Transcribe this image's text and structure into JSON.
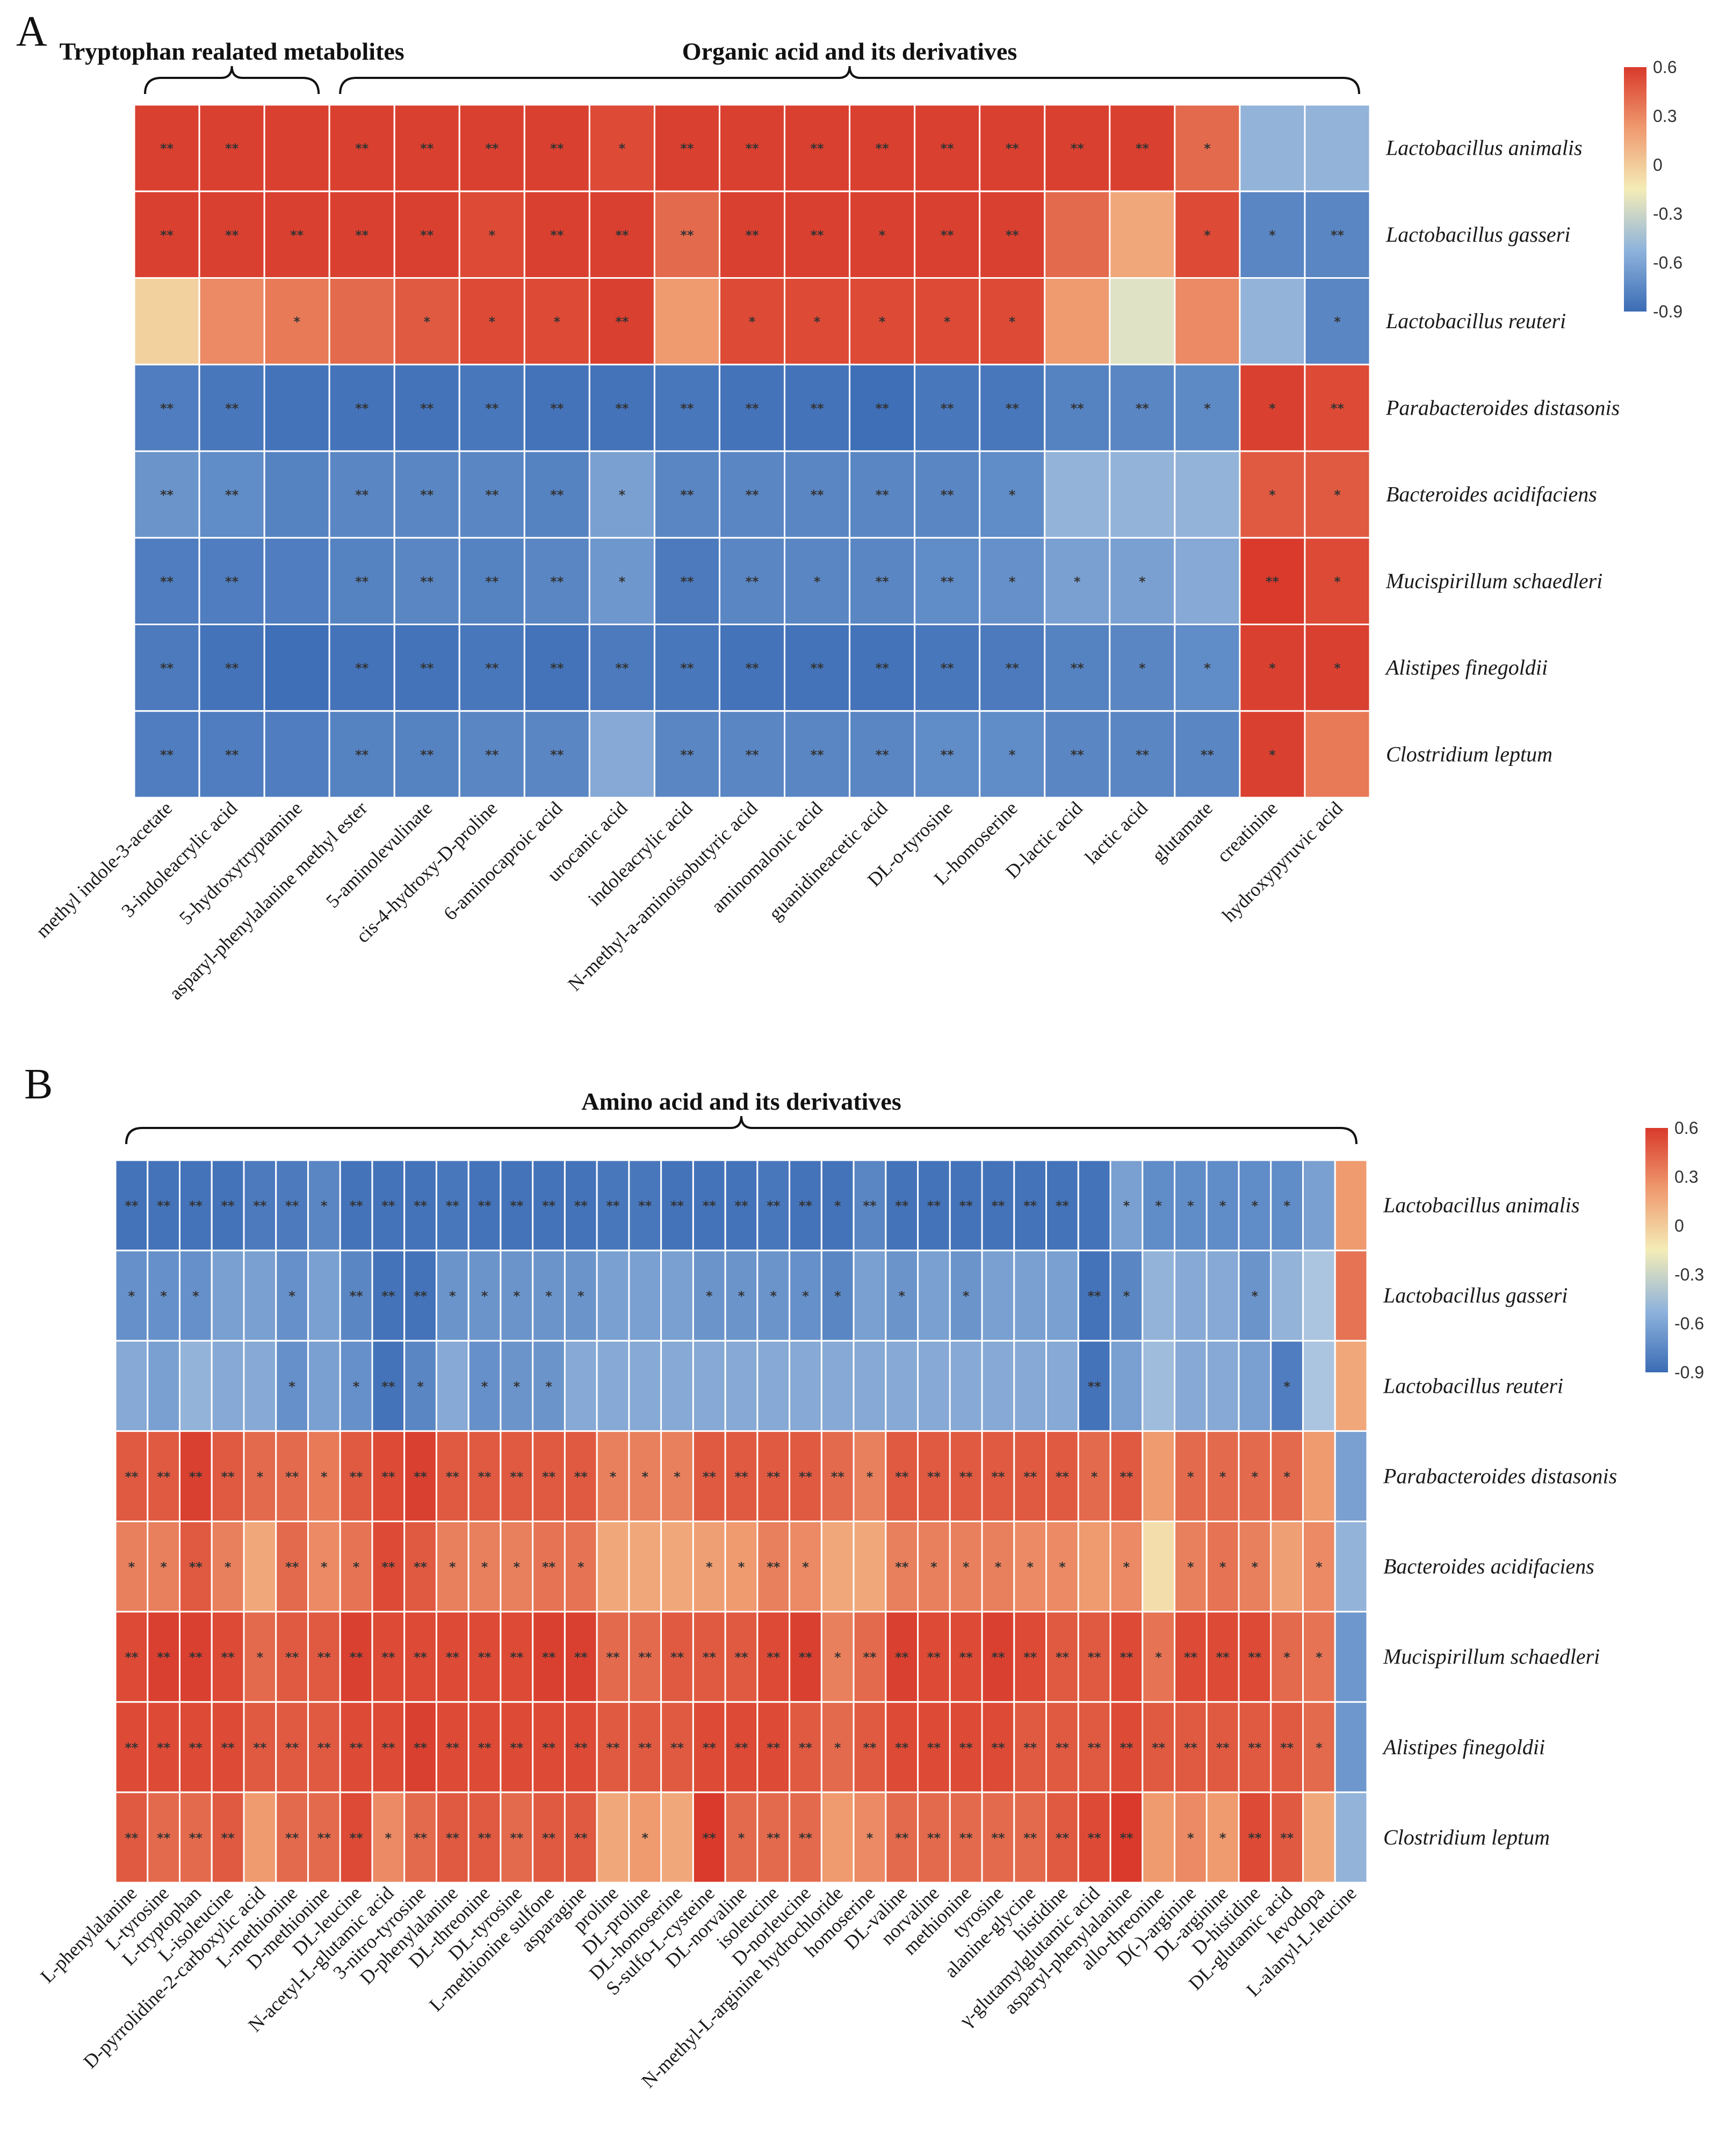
{
  "chart_data": [
    {
      "panel": "A",
      "type": "heatmap",
      "groups": [
        {
          "label": "Tryptophan realated metabolites",
          "start": 0,
          "end": 2
        },
        {
          "label": "Organic  acid and its derivatives",
          "start": 3,
          "end": 18
        }
      ],
      "rows": [
        "Lactobacillus animalis",
        "Lactobacillus gasseri",
        "Lactobacillus reuteri",
        "Parabacteroides distasonis",
        "Bacteroides acidifaciens",
        "Mucispirillum schaedleri",
        "Alistipes finegoldii",
        "Clostridium leptum"
      ],
      "columns": [
        "methyl indole-3-acetate",
        "3-indoleacrylic acid",
        "5-hydroxytryptamine",
        "asparyl-phenylalanine methyl ester",
        "5-aminolevulinate",
        "cis-4-hydroxy-D-proline",
        "6-aminocaproic acid",
        "urocanic acid",
        "indoleacrylic acid",
        "N-methyl-a-aminoisobutyric acid",
        "aminomalonic acid",
        "guanidineacetic acid",
        "DL-o-tyrosine",
        "L-homoserine",
        "D-lactic acid",
        "lactic acid",
        "glutamate",
        "creatinine",
        "hydroxypyruvic acid"
      ],
      "values": [
        [
          0.58,
          0.58,
          0.58,
          0.58,
          0.58,
          0.58,
          0.58,
          0.55,
          0.58,
          0.58,
          0.58,
          0.58,
          0.58,
          0.58,
          0.58,
          0.58,
          0.45,
          -0.45,
          -0.45
        ],
        [
          0.58,
          0.58,
          0.58,
          0.58,
          0.58,
          0.55,
          0.58,
          0.58,
          0.45,
          0.58,
          0.58,
          0.58,
          0.58,
          0.58,
          0.45,
          0.25,
          0.55,
          -0.72,
          -0.72
        ],
        [
          0.1,
          0.35,
          0.4,
          0.45,
          0.5,
          0.55,
          0.55,
          0.58,
          0.3,
          0.55,
          0.55,
          0.55,
          0.55,
          0.55,
          0.3,
          -0.1,
          0.35,
          -0.45,
          -0.72
        ],
        [
          -0.78,
          -0.82,
          -0.85,
          -0.85,
          -0.85,
          -0.82,
          -0.85,
          -0.85,
          -0.82,
          -0.85,
          -0.85,
          -0.88,
          -0.82,
          -0.82,
          -0.75,
          -0.72,
          -0.7,
          0.58,
          0.55
        ],
        [
          -0.62,
          -0.68,
          -0.75,
          -0.72,
          -0.72,
          -0.72,
          -0.75,
          -0.55,
          -0.72,
          -0.72,
          -0.72,
          -0.72,
          -0.72,
          -0.68,
          -0.45,
          -0.45,
          -0.45,
          0.5,
          0.5
        ],
        [
          -0.78,
          -0.78,
          -0.78,
          -0.75,
          -0.72,
          -0.75,
          -0.72,
          -0.6,
          -0.8,
          -0.72,
          -0.72,
          -0.72,
          -0.68,
          -0.65,
          -0.55,
          -0.55,
          -0.5,
          0.6,
          0.55
        ],
        [
          -0.8,
          -0.85,
          -0.88,
          -0.85,
          -0.85,
          -0.82,
          -0.85,
          -0.8,
          -0.82,
          -0.85,
          -0.85,
          -0.85,
          -0.82,
          -0.8,
          -0.75,
          -0.72,
          -0.68,
          0.58,
          0.58
        ],
        [
          -0.78,
          -0.78,
          -0.78,
          -0.75,
          -0.75,
          -0.72,
          -0.72,
          -0.5,
          -0.72,
          -0.72,
          -0.72,
          -0.72,
          -0.68,
          -0.68,
          -0.72,
          -0.72,
          -0.72,
          0.58,
          0.4
        ]
      ],
      "significance": [
        [
          "**",
          "**",
          "",
          "**",
          "**",
          "**",
          "**",
          "*",
          "**",
          "**",
          "**",
          "**",
          "**",
          "**",
          "**",
          "**",
          "*",
          "",
          ""
        ],
        [
          "**",
          "**",
          "**",
          "**",
          "**",
          "*",
          "**",
          "**",
          "**",
          "**",
          "**",
          "*",
          "**",
          "**",
          "",
          "",
          "*",
          "*",
          "**"
        ],
        [
          "",
          "",
          "*",
          "",
          "*",
          "*",
          "*",
          "**",
          "",
          "*",
          "*",
          "*",
          "*",
          "*",
          "",
          "",
          "",
          "",
          "*"
        ],
        [
          "**",
          "**",
          "",
          "**",
          "**",
          "**",
          "**",
          "**",
          "**",
          "**",
          "**",
          "**",
          "**",
          "**",
          "**",
          "**",
          "*",
          "*",
          "**"
        ],
        [
          "**",
          "**",
          "",
          "**",
          "**",
          "**",
          "**",
          "*",
          "**",
          "**",
          "**",
          "**",
          "**",
          "*",
          "",
          "",
          "",
          "*",
          "*"
        ],
        [
          "**",
          "**",
          "",
          "**",
          "**",
          "**",
          "**",
          "*",
          "**",
          "**",
          "*",
          "**",
          "**",
          "*",
          "*",
          "*",
          "",
          "**",
          "*"
        ],
        [
          "**",
          "**",
          "",
          "**",
          "**",
          "**",
          "**",
          "**",
          "**",
          "**",
          "**",
          "**",
          "**",
          "**",
          "**",
          "*",
          "*",
          "*",
          "*"
        ],
        [
          "**",
          "**",
          "",
          "**",
          "**",
          "**",
          "**",
          "",
          "**",
          "**",
          "**",
          "**",
          "**",
          "*",
          "**",
          "**",
          "**",
          "*",
          ""
        ]
      ],
      "colorbar": {
        "ticks": [
          "0.6",
          "0.3",
          "0",
          "-0.3",
          "-0.6",
          "-0.9"
        ],
        "range": [
          -0.9,
          0.6
        ]
      }
    },
    {
      "panel": "B",
      "type": "heatmap",
      "groups": [
        {
          "label": "Amino  acid and its derivatives",
          "start": 0,
          "end": 38
        }
      ],
      "rows": [
        "Lactobacillus animalis",
        "Lactobacillus gasseri",
        "Lactobacillus reuteri",
        "Parabacteroides distasonis",
        "Bacteroides acidifaciens",
        "Mucispirillum schaedleri",
        "Alistipes finegoldii",
        "Clostridium leptum"
      ],
      "columns": [
        "L-phenylalanine",
        "L-tyrosine",
        "L-tryptophan",
        "L-isoleucine",
        "D-pyrrolidine-2-carboxylic acid",
        "L-methionine",
        "D-methionine",
        "DL-leucine",
        "N-acetyl-L-glutamic acid",
        "3-nitro-tyrosine",
        "D-phenylalanine",
        "DL-threonine",
        "DL-tyrosine",
        "L-methionine sulfone",
        "asparagine",
        "proline",
        "DL-proline",
        "DL-homoserine",
        "S-sulfo-L-cysteine",
        "DL-norvaline",
        "isoleucine",
        "D-norleucine",
        "N-methyl-L-arginine hydrochloride",
        "homoserine",
        "DL-valine",
        "norvaline",
        "methionine",
        "tyrosine",
        "alanine-glycine",
        "histidine",
        "γ-glutamylglutamic acid",
        "asparyl-phenylalanine",
        "allo-threonine",
        "D(-)-arginine",
        "DL-arginine",
        "D-histidine",
        "DL-glutamic acid",
        "levodopa",
        "L-alanyl-L-leucine"
      ],
      "values": [
        [
          -0.85,
          -0.85,
          -0.85,
          -0.85,
          -0.8,
          -0.8,
          -0.72,
          -0.85,
          -0.85,
          -0.85,
          -0.82,
          -0.85,
          -0.85,
          -0.85,
          -0.85,
          -0.82,
          -0.82,
          -0.85,
          -0.85,
          -0.85,
          -0.82,
          -0.85,
          -0.85,
          -0.72,
          -0.85,
          -0.85,
          -0.85,
          -0.85,
          -0.85,
          -0.85,
          -0.85,
          -0.55,
          -0.68,
          -0.68,
          -0.68,
          -0.68,
          -0.68,
          -0.55,
          0.3
        ],
        [
          -0.65,
          -0.65,
          -0.65,
          -0.55,
          -0.55,
          -0.65,
          -0.55,
          -0.72,
          -0.85,
          -0.85,
          -0.62,
          -0.62,
          -0.62,
          -0.62,
          -0.62,
          -0.55,
          -0.55,
          -0.55,
          -0.62,
          -0.62,
          -0.62,
          -0.65,
          -0.72,
          -0.55,
          -0.62,
          -0.55,
          -0.62,
          -0.55,
          -0.55,
          -0.55,
          -0.85,
          -0.72,
          -0.45,
          -0.5,
          -0.5,
          -0.62,
          -0.45,
          -0.35,
          0.42
        ],
        [
          -0.5,
          -0.55,
          -0.45,
          -0.5,
          -0.5,
          -0.65,
          -0.55,
          -0.65,
          -0.85,
          -0.72,
          -0.5,
          -0.65,
          -0.62,
          -0.62,
          -0.5,
          -0.5,
          -0.5,
          -0.5,
          -0.5,
          -0.5,
          -0.5,
          -0.5,
          -0.5,
          -0.5,
          -0.5,
          -0.5,
          -0.5,
          -0.5,
          -0.5,
          -0.5,
          -0.85,
          -0.55,
          -0.4,
          -0.5,
          -0.5,
          -0.55,
          -0.78,
          -0.35,
          0.25
        ],
        [
          0.5,
          0.5,
          0.58,
          0.5,
          0.45,
          0.45,
          0.4,
          0.5,
          0.55,
          0.58,
          0.5,
          0.5,
          0.5,
          0.5,
          0.5,
          0.38,
          0.38,
          0.38,
          0.5,
          0.5,
          0.5,
          0.5,
          0.45,
          0.38,
          0.5,
          0.5,
          0.5,
          0.5,
          0.5,
          0.5,
          0.45,
          0.5,
          0.3,
          0.45,
          0.45,
          0.45,
          0.45,
          0.3,
          -0.55
        ],
        [
          0.38,
          0.38,
          0.5,
          0.38,
          0.25,
          0.45,
          0.35,
          0.42,
          0.55,
          0.5,
          0.38,
          0.38,
          0.38,
          0.42,
          0.42,
          0.25,
          0.25,
          0.25,
          0.28,
          0.3,
          0.38,
          0.35,
          0.25,
          0.25,
          0.38,
          0.38,
          0.38,
          0.38,
          0.35,
          0.35,
          0.3,
          0.35,
          0.05,
          0.38,
          0.42,
          0.38,
          0.28,
          0.35,
          -0.45
        ],
        [
          0.55,
          0.58,
          0.58,
          0.55,
          0.45,
          0.5,
          0.5,
          0.58,
          0.55,
          0.55,
          0.55,
          0.55,
          0.55,
          0.58,
          0.58,
          0.45,
          0.45,
          0.5,
          0.5,
          0.5,
          0.55,
          0.58,
          0.38,
          0.45,
          0.58,
          0.55,
          0.55,
          0.58,
          0.55,
          0.5,
          0.5,
          0.55,
          0.42,
          0.55,
          0.55,
          0.55,
          0.45,
          0.42,
          -0.6
        ],
        [
          0.55,
          0.55,
          0.55,
          0.55,
          0.5,
          0.5,
          0.5,
          0.55,
          0.55,
          0.58,
          0.55,
          0.55,
          0.55,
          0.55,
          0.55,
          0.5,
          0.5,
          0.5,
          0.55,
          0.55,
          0.55,
          0.5,
          0.45,
          0.5,
          0.55,
          0.55,
          0.55,
          0.55,
          0.5,
          0.5,
          0.5,
          0.55,
          0.5,
          0.5,
          0.5,
          0.5,
          0.5,
          0.45,
          -0.6
        ],
        [
          0.5,
          0.45,
          0.45,
          0.5,
          0.3,
          0.45,
          0.45,
          0.55,
          0.35,
          0.45,
          0.5,
          0.5,
          0.45,
          0.5,
          0.5,
          0.25,
          0.3,
          0.25,
          0.62,
          0.45,
          0.45,
          0.45,
          0.3,
          0.35,
          0.45,
          0.45,
          0.45,
          0.45,
          0.45,
          0.5,
          0.55,
          0.62,
          0.3,
          0.35,
          0.3,
          0.55,
          0.5,
          0.25,
          -0.45
        ]
      ],
      "significance": [
        [
          "**",
          "**",
          "**",
          "**",
          "**",
          "**",
          "*",
          "**",
          "**",
          "**",
          "**",
          "**",
          "**",
          "**",
          "**",
          "**",
          "**",
          "**",
          "**",
          "**",
          "**",
          "**",
          "*",
          "**",
          "**",
          "**",
          "**",
          "**",
          "**",
          "**",
          "",
          "*",
          "*",
          "*",
          "*",
          "*",
          "*",
          "",
          ""
        ],
        [
          "*",
          "*",
          "*",
          "",
          "",
          "*",
          "",
          "**",
          "**",
          "**",
          "*",
          "*",
          "*",
          "*",
          "*",
          "",
          "",
          "",
          "*",
          "*",
          "*",
          "*",
          "*",
          "",
          "*",
          "",
          "*",
          "",
          "",
          "",
          "**",
          "*",
          "",
          "",
          "",
          "*",
          "",
          "",
          ""
        ],
        [
          "",
          "",
          "",
          "",
          "",
          "*",
          "",
          "*",
          "**",
          "*",
          "",
          "*",
          "*",
          "*",
          "",
          "",
          "",
          "",
          "",
          "",
          "",
          "",
          "",
          "",
          "",
          "",
          "",
          "",
          "",
          "",
          "**",
          "",
          "",
          "",
          "",
          "",
          "*",
          "",
          ""
        ],
        [
          "**",
          "**",
          "**",
          "**",
          "*",
          "**",
          "*",
          "**",
          "**",
          "**",
          "**",
          "**",
          "**",
          "**",
          "**",
          "*",
          "*",
          "*",
          "**",
          "**",
          "**",
          "**",
          "**",
          "*",
          "**",
          "**",
          "**",
          "**",
          "**",
          "**",
          "*",
          "**",
          "",
          "*",
          "*",
          "*",
          "*",
          "",
          ""
        ],
        [
          "*",
          "*",
          "**",
          "*",
          "",
          "**",
          "*",
          "*",
          "**",
          "**",
          "*",
          "*",
          "*",
          "**",
          "*",
          "",
          "",
          "",
          "*",
          "*",
          "**",
          "*",
          "",
          "",
          "**",
          "*",
          "*",
          "*",
          "*",
          "*",
          "",
          "*",
          "",
          "*",
          "*",
          "*",
          "",
          "*",
          ""
        ],
        [
          "**",
          "**",
          "**",
          "**",
          "*",
          "**",
          "**",
          "**",
          "**",
          "**",
          "**",
          "**",
          "**",
          "**",
          "**",
          "**",
          "**",
          "**",
          "**",
          "**",
          "**",
          "**",
          "*",
          "**",
          "**",
          "**",
          "**",
          "**",
          "**",
          "**",
          "**",
          "**",
          "*",
          "**",
          "**",
          "**",
          "*",
          "*",
          ""
        ],
        [
          "**",
          "**",
          "**",
          "**",
          "**",
          "**",
          "**",
          "**",
          "**",
          "**",
          "**",
          "**",
          "**",
          "**",
          "**",
          "**",
          "**",
          "**",
          "**",
          "**",
          "**",
          "**",
          "*",
          "**",
          "**",
          "**",
          "**",
          "**",
          "**",
          "**",
          "**",
          "**",
          "**",
          "**",
          "**",
          "**",
          "**",
          "*",
          ""
        ],
        [
          "**",
          "**",
          "**",
          "**",
          "",
          "**",
          "**",
          "**",
          "*",
          "**",
          "**",
          "**",
          "**",
          "**",
          "**",
          "",
          "*",
          "",
          "**",
          "*",
          "**",
          "**",
          "",
          "*",
          "**",
          "**",
          "**",
          "**",
          "**",
          "**",
          "**",
          "**",
          "",
          "*",
          "*",
          "**",
          "**",
          "",
          ""
        ]
      ],
      "colorbar": {
        "ticks": [
          "0.6",
          "0.3",
          "0",
          "-0.3",
          "-0.6",
          "-0.9"
        ],
        "range": [
          -0.9,
          0.6
        ]
      }
    }
  ],
  "panel_labels": {
    "a": "A",
    "b": "B"
  }
}
